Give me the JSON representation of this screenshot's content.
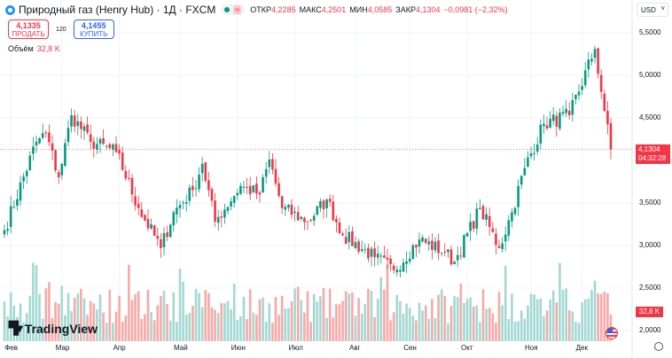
{
  "header": {
    "symbol": "Природный газ (Henry Hub)",
    "interval": "1Д",
    "exchange": "FXCM",
    "title": "Природный газ (Henry Hub) · 1Д · FXCM",
    "ohlc": [
      {
        "label": "ОТКР",
        "value": "4,2285"
      },
      {
        "label": "МАКС",
        "value": "4,2501"
      },
      {
        "label": "МИН",
        "value": "4,0585"
      },
      {
        "label": "ЗАКР",
        "value": "4,1304"
      },
      {
        "label": "",
        "value": "−0,0981 (−2,32%)"
      }
    ]
  },
  "trade": {
    "sell_price": "4,1335",
    "sell_label": "ПРОДАТЬ",
    "spread": "120",
    "buy_price": "4,1455",
    "buy_label": "КУПИТЬ"
  },
  "volume": {
    "label": "Объём",
    "value": "32,8 K",
    "tag": "32,8 K"
  },
  "currency": "USD",
  "price_tag": {
    "price": "4,1304",
    "countdown": "04:32:28"
  },
  "brand": "TradingView",
  "colors": {
    "up": "#089981",
    "down": "#f23645",
    "vol_up": "#a3d8d2",
    "vol_down": "#f7a9a7"
  },
  "chart_data": {
    "type": "candlestick",
    "y_ticks": [
      "5,5000",
      "5,0000",
      "4,5000",
      "3,5000",
      "3,0000",
      "2,5000",
      "2,0000"
    ],
    "y_tick_values": [
      5.5,
      5.0,
      4.5,
      3.5,
      3.0,
      2.5,
      2.0
    ],
    "ylim": [
      2.0,
      5.5
    ],
    "x_ticks": [
      "Фев",
      "Мар",
      "Апр",
      "Май",
      "Июн",
      "Июл",
      "Авг",
      "Сен",
      "Окт",
      "Ноя",
      "Дек"
    ],
    "x_tick_days": [
      2,
      18,
      36,
      55,
      73,
      91,
      110,
      127,
      145,
      165,
      181
    ],
    "last_price": 4.1304,
    "close_anchors": [
      [
        0,
        3.18
      ],
      [
        10,
        4.22
      ],
      [
        13,
        4.32
      ],
      [
        17,
        3.8
      ],
      [
        21,
        4.53
      ],
      [
        27,
        4.22
      ],
      [
        35,
        4.1
      ],
      [
        42,
        3.44
      ],
      [
        49,
        2.97
      ],
      [
        53,
        3.39
      ],
      [
        59,
        3.65
      ],
      [
        62,
        3.96
      ],
      [
        66,
        3.28
      ],
      [
        74,
        3.7
      ],
      [
        80,
        3.6
      ],
      [
        83,
        4.01
      ],
      [
        87,
        3.44
      ],
      [
        95,
        3.28
      ],
      [
        101,
        3.54
      ],
      [
        106,
        3.12
      ],
      [
        116,
        2.86
      ],
      [
        122,
        2.71
      ],
      [
        130,
        3.07
      ],
      [
        138,
        2.92
      ],
      [
        141,
        2.81
      ],
      [
        149,
        3.44
      ],
      [
        155,
        2.97
      ],
      [
        159,
        3.39
      ],
      [
        163,
        3.91
      ],
      [
        169,
        4.43
      ],
      [
        177,
        4.53
      ],
      [
        185,
        5.31
      ],
      [
        188,
        4.58
      ],
      [
        190,
        4.13
      ]
    ]
  }
}
